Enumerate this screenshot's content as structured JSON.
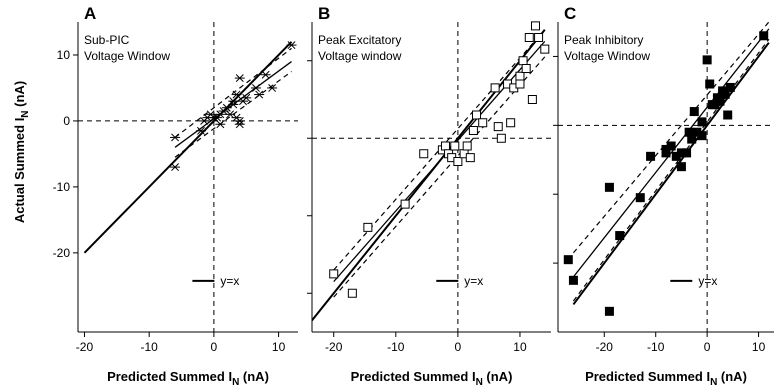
{
  "figure": {
    "ylabel_main": "Actual Summed I",
    "ylabel_sub": "N",
    "ylabel_unit": " (nA)",
    "xlabel_main": "Predicted Summed I",
    "xlabel_sub": "N",
    "xlabel_unit": " (nA)",
    "legend_label": "y=x",
    "colors": {
      "ink": "#000000",
      "background": "#ffffff"
    }
  },
  "chart_data": [
    {
      "panel": "A",
      "type": "scatter",
      "title_lines": [
        "Sub-PIC",
        "Voltage Window"
      ],
      "marker": "asterisk",
      "xlim": [
        -21,
        13
      ],
      "ylim": [
        -32,
        15
      ],
      "x_ticks": [
        -20,
        -10,
        0,
        10
      ],
      "y_ticks": [
        -20,
        -10,
        0,
        10
      ],
      "show_y_tick_labels": true,
      "identity_line": [
        [
          -20,
          -20
        ],
        [
          12,
          12
        ]
      ],
      "fit_line": [
        [
          -6,
          -4
        ],
        [
          12,
          9
        ]
      ],
      "ci_upper": [
        [
          -6,
          -2.5
        ],
        [
          12,
          11
        ]
      ],
      "ci_lower": [
        [
          -6,
          -5.5
        ],
        [
          12,
          7.5
        ]
      ],
      "points": [
        [
          -6,
          -7
        ],
        [
          -6,
          -2.5
        ],
        [
          -2,
          -1.5
        ],
        [
          -1.5,
          0
        ],
        [
          -1,
          0.5
        ],
        [
          -0.5,
          1
        ],
        [
          0,
          0.5
        ],
        [
          0.5,
          0.5
        ],
        [
          1,
          1
        ],
        [
          1,
          -0.5
        ],
        [
          1.5,
          1.5
        ],
        [
          2,
          2
        ],
        [
          2.5,
          1
        ],
        [
          3,
          2.5
        ],
        [
          3,
          3
        ],
        [
          3.5,
          4
        ],
        [
          3.5,
          0.5
        ],
        [
          4,
          6.5
        ],
        [
          4,
          0
        ],
        [
          4,
          -0.5
        ],
        [
          4.5,
          3
        ],
        [
          5,
          3.5
        ],
        [
          6.5,
          5
        ],
        [
          7,
          4
        ],
        [
          8,
          7
        ],
        [
          9,
          5
        ],
        [
          12,
          11.5
        ]
      ],
      "legend_position": "bottom-right"
    },
    {
      "panel": "B",
      "type": "scatter",
      "title_lines": [
        "Peak Excitatory",
        "Voltage window"
      ],
      "marker": "open-square",
      "xlim": [
        -23.5,
        15
      ],
      "ylim": [
        -25,
        15
      ],
      "x_ticks": [
        -20,
        -10,
        0,
        10
      ],
      "y_ticks": [
        -20,
        -10,
        0,
        10
      ],
      "show_y_tick_labels": false,
      "identity_line": [
        [
          -23.5,
          -23.5
        ],
        [
          14,
          14
        ]
      ],
      "fit_line": [
        [
          -20,
          -18.5
        ],
        [
          14,
          12.5
        ]
      ],
      "ci_upper": [
        [
          -20,
          -17
        ],
        [
          14,
          14
        ]
      ],
      "ci_lower": [
        [
          -20,
          -20.5
        ],
        [
          14,
          10.5
        ]
      ],
      "points": [
        [
          -20,
          -17.5
        ],
        [
          -17,
          -20
        ],
        [
          -14.5,
          -11.5
        ],
        [
          -8.5,
          -8.5
        ],
        [
          -5.5,
          -2
        ],
        [
          -2.5,
          -1.5
        ],
        [
          -2,
          -1
        ],
        [
          -1.5,
          -2
        ],
        [
          -1,
          -2.5
        ],
        [
          -0.5,
          -1
        ],
        [
          0,
          -3
        ],
        [
          1,
          -2
        ],
        [
          1.5,
          -1
        ],
        [
          2,
          -2.5
        ],
        [
          2.5,
          1
        ],
        [
          3,
          3
        ],
        [
          4,
          2
        ],
        [
          6,
          6.5
        ],
        [
          6.5,
          1.5
        ],
        [
          7,
          0
        ],
        [
          8,
          7
        ],
        [
          8.5,
          2
        ],
        [
          9,
          6.5
        ],
        [
          10,
          8
        ],
        [
          10,
          7
        ],
        [
          10.5,
          10
        ],
        [
          11,
          9
        ],
        [
          11.5,
          13
        ],
        [
          12,
          5
        ],
        [
          12.5,
          14.5
        ],
        [
          13,
          13
        ],
        [
          14,
          11.5
        ]
      ],
      "legend_position": "bottom-right"
    },
    {
      "panel": "C",
      "type": "scatter",
      "title_lines": [
        "Peak Inhibitory",
        "Voltage Window"
      ],
      "marker": "filled-square",
      "xlim": [
        -29,
        13
      ],
      "ylim": [
        -30,
        15
      ],
      "x_ticks": [
        -20,
        -10,
        0,
        10
      ],
      "y_ticks": [
        -20,
        -10,
        0,
        10
      ],
      "show_y_tick_labels": false,
      "identity_line": [
        [
          -26,
          -26
        ],
        [
          12,
          12
        ]
      ],
      "fit_line": [
        [
          -26,
          -22
        ],
        [
          12,
          14
        ]
      ],
      "ci_upper": [
        [
          -26,
          -18.5
        ],
        [
          12,
          15
        ]
      ],
      "ci_lower": [
        [
          -26,
          -25.5
        ],
        [
          12,
          12.5
        ]
      ],
      "points": [
        [
          -27,
          -19.5
        ],
        [
          -26,
          -22.5
        ],
        [
          -19,
          -9
        ],
        [
          -19,
          -27
        ],
        [
          -17,
          -16
        ],
        [
          -13,
          -10.5
        ],
        [
          -11,
          -4.5
        ],
        [
          -8,
          -4
        ],
        [
          -8,
          -3.5
        ],
        [
          -7,
          -3
        ],
        [
          -6,
          -4.5
        ],
        [
          -5,
          -6
        ],
        [
          -5,
          -4
        ],
        [
          -4,
          -4
        ],
        [
          -3.5,
          -1
        ],
        [
          -3,
          -2
        ],
        [
          -2.5,
          2
        ],
        [
          -2,
          -1
        ],
        [
          -1,
          -1.5
        ],
        [
          -1,
          0.5
        ],
        [
          0,
          9.5
        ],
        [
          0.5,
          6
        ],
        [
          1,
          3
        ],
        [
          1.5,
          3
        ],
        [
          2,
          4
        ],
        [
          2.5,
          3.5
        ],
        [
          3,
          5
        ],
        [
          3.5,
          4.5
        ],
        [
          4,
          1.5
        ],
        [
          4.5,
          5.5
        ],
        [
          11,
          13
        ]
      ],
      "legend_position": "bottom-right"
    }
  ]
}
